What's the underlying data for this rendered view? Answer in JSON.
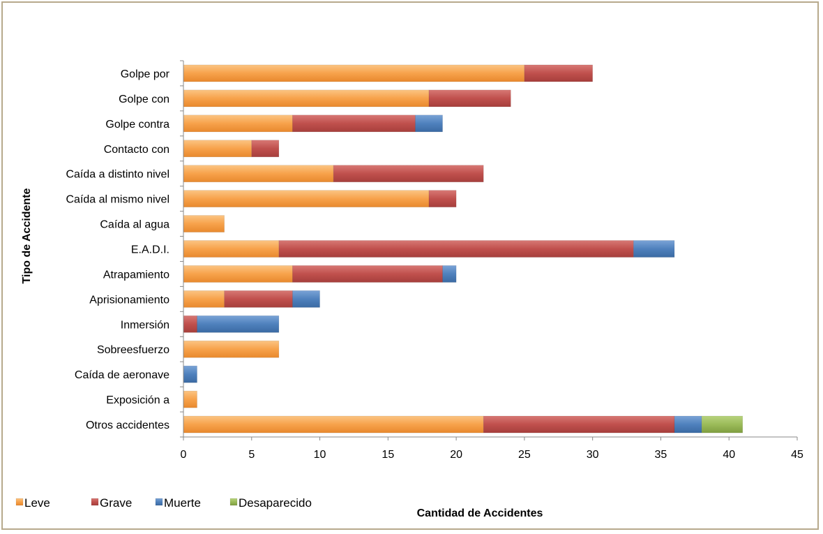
{
  "chart_data": {
    "type": "bar",
    "orientation": "horizontal",
    "stacked": true,
    "title": "",
    "xlabel": "Cantidad de Accidentes",
    "ylabel": "Tipo de Accidente",
    "xlim": [
      0,
      45
    ],
    "xticks": [
      0,
      5,
      10,
      15,
      20,
      25,
      30,
      35,
      40,
      45
    ],
    "grid": false,
    "legend_position": "bottom-left",
    "categories": [
      "Golpe por",
      "Golpe con",
      "Golpe contra",
      "Contacto con",
      "Caída a distinto nivel",
      "Caída al mismo nivel",
      "Caída al agua",
      "E.A.D.I.",
      "Atrapamiento",
      "Aprisionamiento",
      "Inmersión",
      "Sobreesfuerzo",
      "Caída de aeronave",
      "Exposición a",
      "Otros accidentes"
    ],
    "series": [
      {
        "name": "Leve",
        "color": "#f7a24b",
        "values": [
          25,
          18,
          8,
          5,
          11,
          18,
          3,
          7,
          8,
          3,
          0,
          7,
          0,
          1,
          22
        ]
      },
      {
        "name": "Grave",
        "color": "#c0504d",
        "values": [
          5,
          6,
          9,
          2,
          11,
          2,
          0,
          26,
          11,
          5,
          1,
          0,
          0,
          0,
          14
        ]
      },
      {
        "name": "Muerte",
        "color": "#4f81bd",
        "values": [
          0,
          0,
          2,
          0,
          0,
          0,
          0,
          3,
          1,
          2,
          6,
          0,
          1,
          0,
          2
        ]
      },
      {
        "name": "Desaparecido",
        "color": "#9bbb59",
        "values": [
          0,
          0,
          0,
          0,
          0,
          0,
          0,
          0,
          0,
          0,
          0,
          0,
          0,
          0,
          3
        ]
      }
    ]
  }
}
